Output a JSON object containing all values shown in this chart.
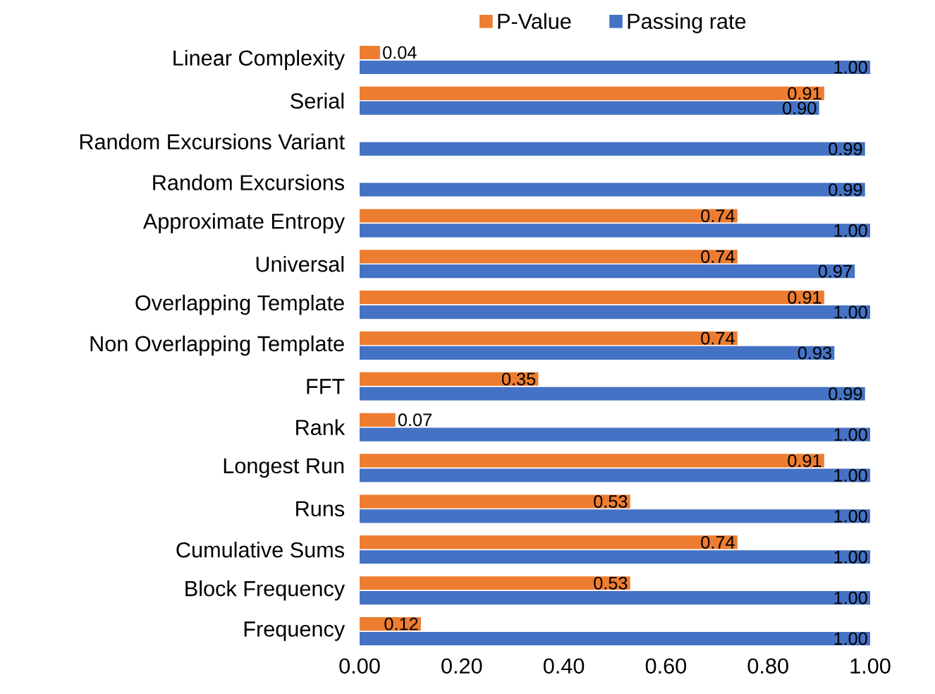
{
  "chart_data": {
    "type": "bar",
    "orientation": "horizontal",
    "categories": [
      "Linear Complexity",
      "Serial",
      "Random Excursions Variant",
      "Random Excursions",
      "Approximate Entropy",
      "Universal",
      "Overlapping Template",
      "Non Overlapping Template",
      "FFT",
      "Rank",
      "Longest Run",
      "Runs",
      "Cumulative Sums",
      "Block Frequency",
      "Frequency"
    ],
    "series": [
      {
        "name": "P-Value",
        "color": "#ed7d31",
        "values": [
          0.04,
          0.91,
          null,
          null,
          0.74,
          0.74,
          0.91,
          0.74,
          0.35,
          0.07,
          0.91,
          0.53,
          0.74,
          0.53,
          0.12
        ],
        "value_labels": [
          "0.04",
          "0.91",
          null,
          null,
          "0.74",
          "0.74",
          "0.91",
          "0.74",
          "0.35",
          "0.07",
          "0.91",
          "0.53",
          "0.74",
          "0.53",
          "0.12"
        ]
      },
      {
        "name": "Passing rate",
        "color": "#4472c4",
        "values": [
          1.0,
          0.9,
          0.99,
          0.99,
          1.0,
          0.97,
          1.0,
          0.93,
          0.99,
          1.0,
          1.0,
          1.0,
          1.0,
          1.0,
          1.0
        ],
        "value_labels": [
          "1.00",
          "0.90",
          "0.99",
          "0.99",
          "1.00",
          "0.97",
          "1.00",
          "0.93",
          "0.99",
          "1.00",
          "1.00",
          "1.00",
          "1.00",
          "1.00",
          "1.00"
        ]
      }
    ],
    "xlim": [
      0,
      1
    ],
    "xticks": [
      {
        "value": 0,
        "label": "0.00"
      },
      {
        "value": 0.2,
        "label": "0.20"
      },
      {
        "value": 0.4,
        "label": "0.40"
      },
      {
        "value": 0.6,
        "label": "0.60"
      },
      {
        "value": 0.8,
        "label": "0.80"
      },
      {
        "value": 1,
        "label": "1.00"
      }
    ],
    "legend": "top",
    "grid": false
  }
}
